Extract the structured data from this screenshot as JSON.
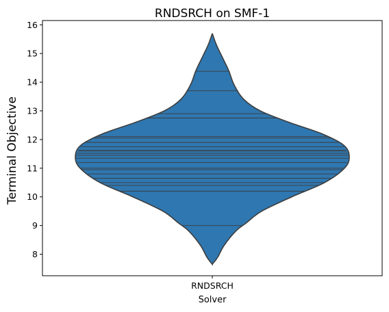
{
  "chart_data": {
    "type": "violin",
    "title": "RNDSRCH on SMF-1",
    "xlabel": "Solver",
    "ylabel": "Terminal Objective",
    "categories": [
      "RNDSRCH"
    ],
    "ylim": [
      7.25,
      16.15
    ],
    "yticks": [
      8,
      9,
      10,
      11,
      12,
      13,
      14,
      15,
      16
    ],
    "grid": false,
    "legend": "none",
    "colors": {
      "fill": "#2f77b0",
      "edge": "#3d3d3d",
      "frame": "#000000"
    },
    "density": [
      {
        "y": 7.65,
        "w": 0.0
      },
      {
        "y": 7.9,
        "w": 0.04
      },
      {
        "y": 8.3,
        "w": 0.085
      },
      {
        "y": 8.8,
        "w": 0.17
      },
      {
        "y": 9.1,
        "w": 0.25
      },
      {
        "y": 9.5,
        "w": 0.36
      },
      {
        "y": 10.0,
        "w": 0.58
      },
      {
        "y": 10.5,
        "w": 0.82
      },
      {
        "y": 11.0,
        "w": 0.965
      },
      {
        "y": 11.4,
        "w": 1.0
      },
      {
        "y": 11.8,
        "w": 0.96
      },
      {
        "y": 12.2,
        "w": 0.8
      },
      {
        "y": 12.6,
        "w": 0.56
      },
      {
        "y": 13.0,
        "w": 0.35
      },
      {
        "y": 13.4,
        "w": 0.23
      },
      {
        "y": 13.9,
        "w": 0.16
      },
      {
        "y": 14.4,
        "w": 0.12
      },
      {
        "y": 14.9,
        "w": 0.07
      },
      {
        "y": 15.3,
        "w": 0.03
      },
      {
        "y": 15.7,
        "w": 0.0
      }
    ],
    "observations": [
      14.38,
      13.7,
      12.9,
      12.75,
      12.1,
      12.05,
      11.9,
      11.75,
      11.62,
      11.6,
      11.52,
      11.45,
      11.35,
      11.2,
      11.0,
      10.95,
      10.8,
      10.65,
      10.5,
      10.4,
      10.2,
      9.0
    ]
  }
}
